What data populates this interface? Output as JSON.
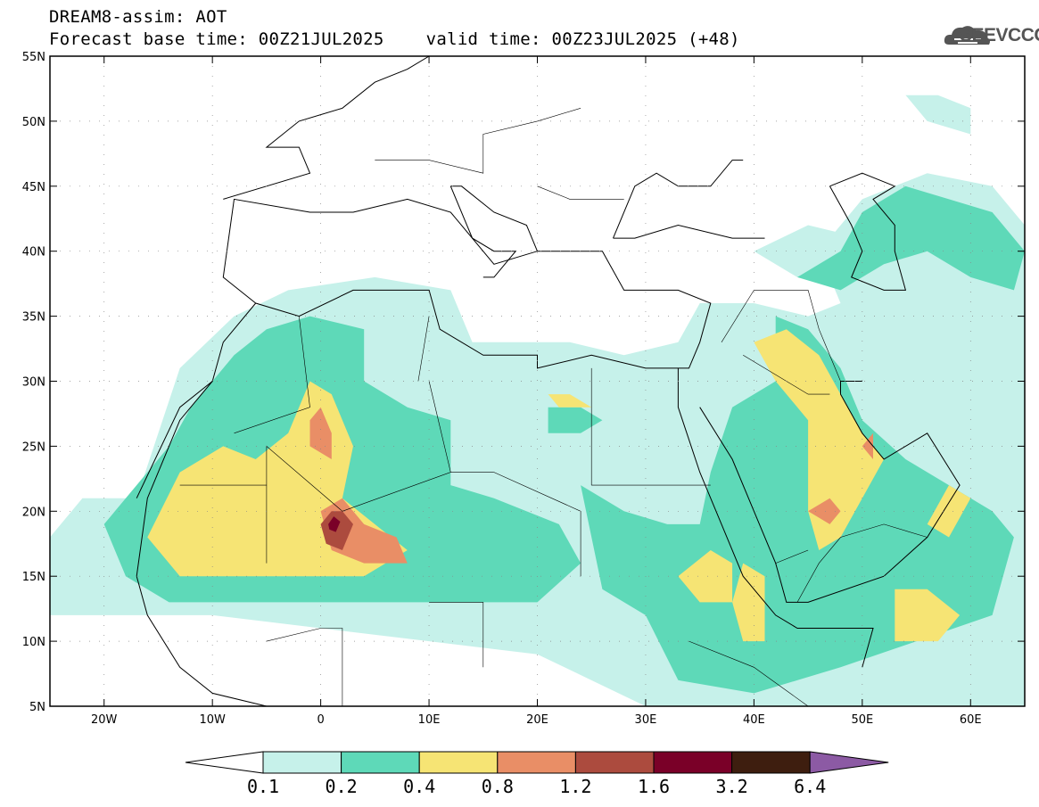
{
  "title_line1": "DREAM8-assim: AOT",
  "title_line2": "Forecast base time: 00Z21JUL2025    valid time: 00Z23JUL2025 (+48)",
  "logo": {
    "text": "SEEVCCC",
    "icon": "cloud-icon"
  },
  "map": {
    "lon_range": [
      -25,
      65
    ],
    "lat_range": [
      5,
      55
    ],
    "lat_ticks": [
      {
        "value": 55,
        "label": "55N"
      },
      {
        "value": 50,
        "label": "50N"
      },
      {
        "value": 45,
        "label": "45N"
      },
      {
        "value": 40,
        "label": "40N"
      },
      {
        "value": 35,
        "label": "35N"
      },
      {
        "value": 30,
        "label": "30N"
      },
      {
        "value": 25,
        "label": "25N"
      },
      {
        "value": 20,
        "label": "20N"
      },
      {
        "value": 15,
        "label": "15N"
      },
      {
        "value": 10,
        "label": "10N"
      },
      {
        "value": 5,
        "label": "5N"
      }
    ],
    "lon_ticks": [
      {
        "value": -20,
        "label": "20W"
      },
      {
        "value": -10,
        "label": "10W"
      },
      {
        "value": 0,
        "label": "0"
      },
      {
        "value": 10,
        "label": "10E"
      },
      {
        "value": 20,
        "label": "20E"
      },
      {
        "value": 30,
        "label": "30E"
      },
      {
        "value": 40,
        "label": "40E"
      },
      {
        "value": 50,
        "label": "50E"
      },
      {
        "value": 60,
        "label": "60E"
      }
    ],
    "grid": "dotted"
  },
  "colorbar": {
    "labels": [
      "0.1",
      "0.2",
      "0.4",
      "0.8",
      "1.2",
      "1.6",
      "3.2",
      "6.4"
    ],
    "colors": [
      "#ffffff",
      "#c6f1ea",
      "#5ed9b8",
      "#f6e474",
      "#e98e66",
      "#ac4b3e",
      "#7a0028",
      "#3e1e0f",
      "#8c5aa4"
    ]
  },
  "colors": {
    "c1": "#c6f1ea",
    "c2": "#5ed9b8",
    "c3": "#f6e474",
    "c4": "#e98e66",
    "c5": "#ac4b3e",
    "c6": "#7a0028"
  }
}
